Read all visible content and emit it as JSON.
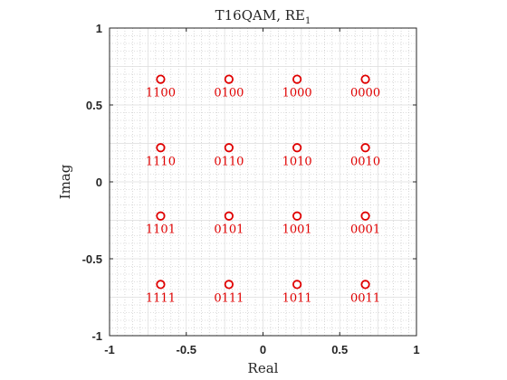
{
  "chart_data": {
    "type": "scatter",
    "title": "T16QAM, RE",
    "title_subscript": "1",
    "xlabel": "Real",
    "ylabel": "Imag",
    "xlim": [
      -1,
      1
    ],
    "ylim": [
      -1,
      1
    ],
    "xticks": [
      -1,
      -0.5,
      0,
      0.5,
      1
    ],
    "yticks": [
      -1,
      -0.5,
      0,
      0.5,
      1
    ],
    "xtick_labels": [
      "-1",
      "-0.5",
      "0",
      "0.5",
      "1"
    ],
    "ytick_labels": [
      "-1",
      "-0.5",
      "0",
      "0.5",
      "1"
    ],
    "grid": true,
    "minor_grid": true,
    "marker": "circle",
    "color": "#e00000",
    "points": [
      {
        "x": -0.667,
        "y": 0.667,
        "label": "1100"
      },
      {
        "x": -0.222,
        "y": 0.667,
        "label": "0100"
      },
      {
        "x": 0.222,
        "y": 0.667,
        "label": "1000"
      },
      {
        "x": 0.667,
        "y": 0.667,
        "label": "0000"
      },
      {
        "x": -0.667,
        "y": 0.222,
        "label": "1110"
      },
      {
        "x": -0.222,
        "y": 0.222,
        "label": "0110"
      },
      {
        "x": 0.222,
        "y": 0.222,
        "label": "1010"
      },
      {
        "x": 0.667,
        "y": 0.222,
        "label": "0010"
      },
      {
        "x": -0.667,
        "y": -0.222,
        "label": "1101"
      },
      {
        "x": -0.222,
        "y": -0.222,
        "label": "0101"
      },
      {
        "x": 0.222,
        "y": -0.222,
        "label": "1001"
      },
      {
        "x": 0.667,
        "y": -0.222,
        "label": "0001"
      },
      {
        "x": -0.667,
        "y": -0.667,
        "label": "1111"
      },
      {
        "x": -0.222,
        "y": -0.667,
        "label": "0111"
      },
      {
        "x": 0.222,
        "y": -0.667,
        "label": "1011"
      },
      {
        "x": 0.667,
        "y": -0.667,
        "label": "0011"
      }
    ]
  }
}
